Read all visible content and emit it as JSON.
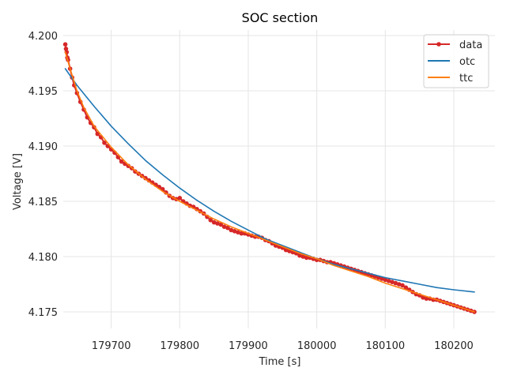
{
  "chart_data": {
    "type": "line",
    "title": "SOC section",
    "xlabel": "Time [s]",
    "ylabel": "Voltage [V]",
    "xlim": [
      179630,
      180260
    ],
    "ylim": [
      4.1735,
      4.2005
    ],
    "xticks": [
      179700,
      179800,
      179900,
      180000,
      180100,
      180200
    ],
    "yticks": [
      4.175,
      4.18,
      4.185,
      4.19,
      4.195,
      4.2
    ],
    "xtick_labels": [
      "179700",
      "179800",
      "179900",
      "180000",
      "180100",
      "180200"
    ],
    "ytick_labels": [
      "4.175",
      "4.180",
      "4.185",
      "4.190",
      "4.195",
      "4.200"
    ],
    "grid": true,
    "legend_position": "top-right",
    "series": [
      {
        "name": "data",
        "color": "#d62728",
        "marker": "circle",
        "x": [
          179633,
          179634,
          179635,
          179636,
          179637,
          179640,
          179643,
          179646,
          179650,
          179655,
          179660,
          179665,
          179670,
          179675,
          179680,
          179685,
          179690,
          179695,
          179700,
          179705,
          179710,
          179715,
          179720,
          179725,
          179730,
          179735,
          179740,
          179745,
          179750,
          179755,
          179760,
          179765,
          179770,
          179775,
          179780,
          179785,
          179790,
          179795,
          179800,
          179805,
          179810,
          179815,
          179820,
          179825,
          179830,
          179835,
          179840,
          179845,
          179850,
          179855,
          179860,
          179865,
          179870,
          179875,
          179880,
          179885,
          179890,
          179895,
          179900,
          179905,
          179910,
          179915,
          179920,
          179925,
          179930,
          179935,
          179940,
          179945,
          179950,
          179955,
          179960,
          179965,
          179970,
          179975,
          179980,
          179985,
          179990,
          179995,
          180000,
          180005,
          180010,
          180015,
          180020,
          180025,
          180030,
          180035,
          180040,
          180045,
          180050,
          180055,
          180060,
          180065,
          180070,
          180075,
          180080,
          180085,
          180090,
          180095,
          180100,
          180105,
          180110,
          180115,
          180120,
          180125,
          180130,
          180135,
          180140,
          180145,
          180150,
          180155,
          180160,
          180165,
          180170,
          180175,
          180180,
          180185,
          180190,
          180195,
          180200,
          180205,
          180210,
          180215,
          180220,
          180225,
          180230
        ],
        "y": [
          4.1992,
          4.1988,
          4.1985,
          4.198,
          4.1978,
          4.197,
          4.1962,
          4.1955,
          4.1948,
          4.194,
          4.1933,
          4.1926,
          4.1921,
          4.1917,
          4.1911,
          4.1908,
          4.1903,
          4.19,
          4.1897,
          4.1894,
          4.189,
          4.1886,
          4.1884,
          4.1882,
          4.188,
          4.1877,
          4.1875,
          4.1873,
          4.1871,
          4.1869,
          4.1867,
          4.1865,
          4.1863,
          4.1861,
          4.1858,
          4.1855,
          4.1853,
          4.1852,
          4.1853,
          4.185,
          4.1848,
          4.1846,
          4.1845,
          4.1843,
          4.1841,
          4.1839,
          4.1836,
          4.1833,
          4.1831,
          4.183,
          4.1829,
          4.1827,
          4.1826,
          4.1824,
          4.1823,
          4.1822,
          4.1821,
          4.1821,
          4.182,
          4.1819,
          4.1818,
          4.1818,
          4.1817,
          4.1815,
          4.1814,
          4.1812,
          4.181,
          4.1809,
          4.1808,
          4.1806,
          4.1805,
          4.1804,
          4.1803,
          4.1801,
          4.18,
          4.1799,
          4.1799,
          4.1798,
          4.1797,
          4.1797,
          4.1796,
          4.1795,
          4.1795,
          4.1794,
          4.1793,
          4.1792,
          4.1791,
          4.179,
          4.1789,
          4.1788,
          4.1787,
          4.1786,
          4.1785,
          4.1784,
          4.1783,
          4.1782,
          4.1781,
          4.178,
          4.1779,
          4.1778,
          4.1777,
          4.1776,
          4.1775,
          4.1774,
          4.1772,
          4.177,
          4.1768,
          4.1766,
          4.1765,
          4.1763,
          4.1762,
          4.1762,
          4.1761,
          4.1761,
          4.176,
          4.1759,
          4.1758,
          4.1757,
          4.1756,
          4.1755,
          4.1754,
          4.1753,
          4.1752,
          4.1751,
          4.175
        ]
      },
      {
        "name": "otc",
        "color": "#1f77b4",
        "marker": "none",
        "x": [
          179633,
          179650,
          179675,
          179700,
          179725,
          179750,
          179775,
          179800,
          179825,
          179850,
          179875,
          179900,
          179925,
          179950,
          179975,
          180000,
          180025,
          180050,
          180075,
          180100,
          180125,
          180150,
          180175,
          180200,
          180230
        ],
        "y": [
          4.197,
          4.1955,
          4.1936,
          4.1918,
          4.1902,
          4.1887,
          4.1874,
          4.1862,
          4.1851,
          4.1841,
          4.1832,
          4.1824,
          4.1816,
          4.181,
          4.1804,
          4.1798,
          4.1793,
          4.1789,
          4.1785,
          4.1781,
          4.1778,
          4.1775,
          4.1772,
          4.177,
          4.1768
        ]
      },
      {
        "name": "ttc",
        "color": "#ff7f0e",
        "marker": "none",
        "x": [
          179633,
          179640,
          179650,
          179660,
          179675,
          179700,
          179725,
          179750,
          179775,
          179800,
          179825,
          179850,
          179875,
          179900,
          179925,
          179950,
          179975,
          180000,
          180025,
          180050,
          180075,
          180100,
          180125,
          180150,
          180175,
          180200,
          180230
        ],
        "y": [
          4.1985,
          4.197,
          4.195,
          4.1935,
          4.1918,
          4.1899,
          4.1883,
          4.187,
          4.1859,
          4.185,
          4.1842,
          4.1834,
          4.1827,
          4.1821,
          4.1815,
          4.1809,
          4.1803,
          4.1798,
          4.1792,
          4.1787,
          4.1782,
          4.1776,
          4.1771,
          4.1766,
          4.1761,
          4.1756,
          4.175
        ]
      }
    ]
  }
}
